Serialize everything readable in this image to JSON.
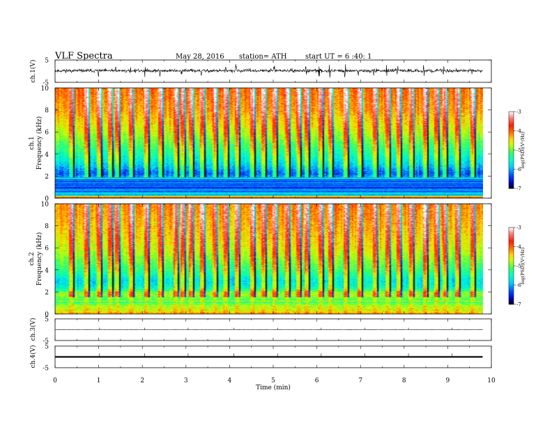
{
  "header": {
    "title": "VLF  Spectra",
    "date": "May 28, 2016",
    "station": "station= ATH",
    "start": "start  UT =   6  :40: 1"
  },
  "colors": {
    "trace": "#000000",
    "colormap": [
      "#000000",
      "#0000cc",
      "#0055ff",
      "#00ccff",
      "#00ffcc",
      "#33ff66",
      "#ccff00",
      "#ffd400",
      "#ff7700",
      "#ff2200",
      "#ff8888",
      "#ffffff"
    ]
  },
  "chart_data": [
    {
      "type": "line",
      "name": "ch1-waveform",
      "ylabel": "ch.1(V)",
      "ylim": [
        -5,
        5
      ],
      "yticks": [
        "5",
        "-5"
      ],
      "xlim": [
        0,
        10
      ],
      "description_values": {
        "baseline_v": 0.2,
        "noise_amplitude_v": 1.2,
        "spike_amplitude_v": 2.6
      },
      "spike_times_min": [
        1.0,
        1.4,
        1.73,
        2.07,
        2.4,
        2.9,
        3.35,
        3.9,
        4.15,
        5.02,
        5.75,
        6.05,
        6.3,
        6.65,
        6.95,
        7.3,
        7.6,
        7.85,
        8.45,
        8.9,
        9.2,
        9.55
      ]
    },
    {
      "type": "heatmap",
      "name": "ch1-spectrogram",
      "ylabel_channel": "ch.1",
      "ylabel": "Frequency  (kHz)",
      "ylim": [
        0,
        10
      ],
      "yticks": [
        "0",
        "2",
        "4",
        "6",
        "8",
        "10"
      ],
      "xlim": [
        0,
        9.8
      ],
      "colorbar": {
        "label": "log(PSD)(V²/Hz)",
        "range": [
          -7,
          -3
        ],
        "ticks": [
          "-3",
          "-4",
          "-5",
          "-6",
          "-7"
        ]
      },
      "profile": [
        {
          "f_khz": 0.0,
          "log_psd": -3.6
        },
        {
          "f_khz": 0.25,
          "log_psd": -6.0
        },
        {
          "f_khz": 1.0,
          "log_psd": -6.2
        },
        {
          "f_khz": 1.8,
          "log_psd": -5.9
        },
        {
          "f_khz": 2.2,
          "log_psd": -6.3
        },
        {
          "f_khz": 3.0,
          "log_psd": -5.8
        },
        {
          "f_khz": 4.0,
          "log_psd": -5.4
        },
        {
          "f_khz": 6.0,
          "log_psd": -4.7
        },
        {
          "f_khz": 8.0,
          "log_psd": -4.2
        },
        {
          "f_khz": 10.0,
          "log_psd": -4.0
        }
      ],
      "low_band_khz": 1.9,
      "sferic_times_min": [
        0.35,
        0.7,
        1.0,
        1.25,
        1.4,
        1.73,
        2.07,
        2.4,
        2.75,
        2.9,
        3.1,
        3.35,
        3.65,
        3.9,
        4.15,
        4.5,
        4.75,
        5.02,
        5.3,
        5.55,
        5.75,
        6.05,
        6.3,
        6.65,
        6.95,
        7.3,
        7.6,
        7.85,
        8.15,
        8.45,
        8.7,
        8.9,
        9.2,
        9.55
      ]
    },
    {
      "type": "heatmap",
      "name": "ch2-spectrogram",
      "ylabel_channel": "ch.2",
      "ylabel": "Frequency  (kHz)",
      "ylim": [
        0,
        10
      ],
      "yticks": [
        "0",
        "2",
        "4",
        "6",
        "8",
        "10"
      ],
      "xlim": [
        0,
        9.8
      ],
      "colorbar": {
        "label": "log(PSD)(V²/Hz)",
        "range": [
          -7,
          -3
        ],
        "ticks": [
          "-3",
          "-4",
          "-5",
          "-6",
          "-7"
        ]
      },
      "profile": [
        {
          "f_khz": 0.0,
          "log_psd": -4.3
        },
        {
          "f_khz": 0.3,
          "log_psd": -4.6
        },
        {
          "f_khz": 1.0,
          "log_psd": -5.0
        },
        {
          "f_khz": 1.8,
          "log_psd": -4.9
        },
        {
          "f_khz": 2.5,
          "log_psd": -5.6
        },
        {
          "f_khz": 3.0,
          "log_psd": -5.7
        },
        {
          "f_khz": 4.0,
          "log_psd": -5.2
        },
        {
          "f_khz": 6.0,
          "log_psd": -4.6
        },
        {
          "f_khz": 8.0,
          "log_psd": -4.3
        },
        {
          "f_khz": 10.0,
          "log_psd": -4.1
        }
      ],
      "sferic_times_min": [
        0.35,
        0.7,
        1.0,
        1.25,
        1.4,
        1.73,
        2.07,
        2.4,
        2.75,
        2.9,
        3.1,
        3.35,
        3.65,
        3.9,
        4.15,
        4.5,
        4.75,
        5.02,
        5.3,
        5.55,
        5.75,
        6.05,
        6.3,
        6.65,
        6.95,
        7.3,
        7.6,
        7.85,
        8.15,
        8.45,
        8.7,
        8.9,
        9.2,
        9.55
      ]
    },
    {
      "type": "line",
      "name": "ch3-waveform",
      "ylabel": "ch.3(V)",
      "ylim": [
        -5,
        5
      ],
      "yticks": [
        "5",
        "-5"
      ],
      "xlim": [
        0,
        10
      ],
      "description_values": {
        "baseline_v": 0.0,
        "noise_amplitude_v": 0.05
      },
      "small_spike_times_min": [
        1.02,
        2.05,
        3.05,
        4.1,
        5.1,
        6.1,
        7.1,
        8.1,
        9.1
      ]
    },
    {
      "type": "line",
      "name": "ch4-waveform",
      "ylabel": "ch.4(V)",
      "ylim": [
        -5,
        5
      ],
      "yticks": [
        "5",
        "-5"
      ],
      "xlim": [
        0,
        10
      ],
      "description_values": {
        "baseline_v": 0.0,
        "band_halfwidth_v": 0.35
      },
      "xlabel": "Time  (min)",
      "xticks": [
        "0",
        "1",
        "2",
        "3",
        "4",
        "5",
        "6",
        "7",
        "8",
        "9",
        "10"
      ]
    }
  ]
}
